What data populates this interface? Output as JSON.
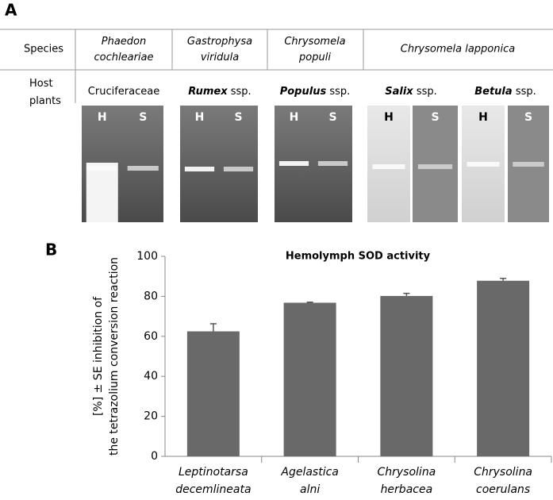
{
  "panel_a": {
    "label": "A",
    "row_headers": [
      "Species",
      "Host plants"
    ],
    "species": [
      "Phaedon cochleariae",
      "Gastrophysa viridula",
      "Chrysomela populi",
      "Chrysomela lapponica"
    ],
    "hosts": [
      {
        "name": "Cruciferaceae"
      },
      {
        "genus": "Rumex",
        "rank": "ssp."
      },
      {
        "genus": "Populus",
        "rank": "ssp."
      },
      {
        "genus": "Salix",
        "rank": "ssp."
      },
      {
        "genus": "Betula",
        "rank": "ssp."
      }
    ],
    "gel_lane_labels": [
      [
        "H",
        "S"
      ],
      [
        "H",
        "S"
      ],
      [
        "H",
        "S"
      ],
      [
        "H"
      ],
      [
        "S"
      ],
      [
        "H"
      ],
      [
        "S"
      ]
    ]
  },
  "chart_data": {
    "type": "bar",
    "label": "B",
    "title": "Hemolymph SOD activity",
    "y_label": "[%] ± SE inhibition of the tetrazolium conversion reaction",
    "categories": [
      "Leptinotarsa decemlineata",
      "Agelastica alni",
      "Chrysolina herbacea",
      "Chrysolina coerulans"
    ],
    "values": [
      62.5,
      76.8,
      80.2,
      87.8
    ],
    "errors": [
      3.8,
      0.3,
      1.3,
      1.2
    ],
    "color": "#696969",
    "ylim": [
      0,
      100
    ],
    "yticks": [
      0,
      20,
      40,
      60,
      80,
      100
    ]
  }
}
